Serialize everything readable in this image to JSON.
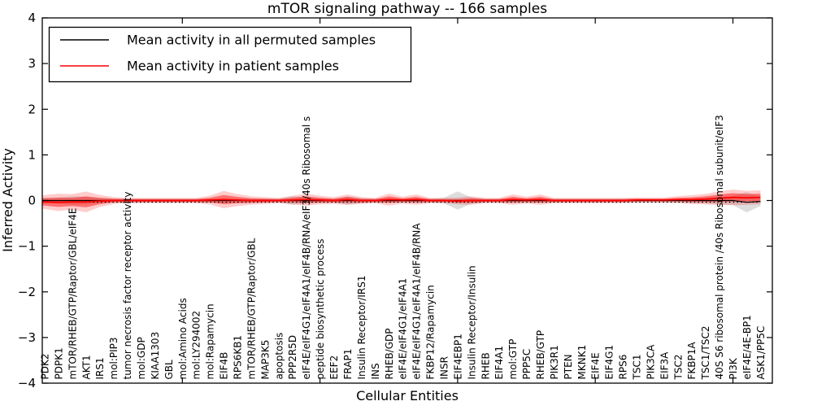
{
  "title": "mTOR signaling pathway -- 166 samples",
  "legend": {
    "items": [
      {
        "label": "Mean activity in all permuted samples",
        "color": "#000000"
      },
      {
        "label": "Mean activity in patient samples",
        "color": "#ff0000"
      }
    ]
  },
  "chart_data": {
    "type": "line",
    "title": "mTOR signaling pathway -- 166 samples",
    "xlabel": "Cellular Entities",
    "ylabel": "Inferred Activity",
    "ylim": [
      -4,
      4
    ],
    "ytick_values": [
      4,
      3,
      2,
      1,
      0,
      -1,
      -2,
      -3,
      -4
    ],
    "ytick_labels": [
      "4",
      "3",
      "2",
      "1",
      "0",
      "−1",
      "−2",
      "−3",
      "−4"
    ],
    "grid": false,
    "legend_position": "upper left",
    "band_colors": {
      "permuted": "#aaaaaa",
      "patient": "#ff0000"
    },
    "categories": [
      "PDK2",
      "PDPK1",
      "mTOR/RHEB/GTP/Raptor/GBL/eIF4E",
      "AKT1",
      "IRS1",
      "mol:PIP3",
      "tumor necrosis factor receptor activity",
      "mol:GDP",
      "KIAA1303",
      "GBL",
      "mol:Amino Acids",
      "mol:LY294002",
      "mol:Rapamycin",
      "EIF4B",
      "RPS6KB1",
      "mTOR/RHEB/GTP/Raptor/GBL",
      "MAP3K5",
      "apoptosis",
      "PPP2R5D",
      "eIF4E/eIF4G1/eIF4A1/eIF4B/RNA/eIF3/40s Ribosomal s",
      "peptide biosynthetic process",
      "EEF2",
      "FRAP1",
      "Insulin Receptor/IRS1",
      "INS",
      "RHEB/GDP",
      "eIF4E/eIF4G1/eIF4A1",
      "eIF4E/eIF4G1/eIF4A1/eIF4B/RNA",
      "FKBP12/Rapamycin",
      "INSR",
      "EIF4EBP1",
      "Insulin Receptor/Insulin",
      "RHEB",
      "EIF4A1",
      "mol:GTP",
      "PPP5C",
      "RHEB/GTP",
      "PIK3R1",
      "PTEN",
      "MKNK1",
      "EIF4E",
      "EIF4G1",
      "RPS6",
      "TSC1",
      "PIK3CA",
      "EIF3A",
      "TSC2",
      "FKBP1A",
      "TSC1/TSC2",
      "40S S6 ribosomal protein /40s Ribosomal subunit/eIF3",
      "PI3K",
      "eIF4E/4E-BP1",
      "ASK1/PP5C"
    ],
    "series": [
      {
        "name": "Mean activity in all permuted samples",
        "color": "#000000",
        "mean": [
          0,
          0,
          0,
          0,
          0,
          0,
          0,
          0,
          0,
          0,
          0,
          0,
          0,
          0,
          0,
          0,
          0,
          0,
          0,
          0,
          0,
          0,
          0,
          0,
          0,
          0,
          0,
          0,
          0,
          0,
          0,
          0,
          0,
          0,
          0,
          0,
          0,
          0,
          0,
          0,
          0,
          0,
          0,
          0,
          0,
          0,
          0,
          0,
          0,
          0,
          0,
          -0.04,
          -0.02
        ],
        "std": [
          0.06,
          0.07,
          0.09,
          0.08,
          0.05,
          0.04,
          0.04,
          0.04,
          0.04,
          0.04,
          0.04,
          0.04,
          0.04,
          0.05,
          0.04,
          0.04,
          0.04,
          0.04,
          0.09,
          0.07,
          0.05,
          0.04,
          0.09,
          0.05,
          0.04,
          0.05,
          0.04,
          0.05,
          0.04,
          0.06,
          0.2,
          0.07,
          0.04,
          0.04,
          0.05,
          0.04,
          0.05,
          0.04,
          0.04,
          0.04,
          0.04,
          0.04,
          0.04,
          0.04,
          0.04,
          0.04,
          0.04,
          0.05,
          0.06,
          0.08,
          0.1,
          0.22,
          0.1
        ]
      },
      {
        "name": "Mean activity in patient samples",
        "color": "#ff0000",
        "mean": [
          -0.03,
          -0.04,
          -0.03,
          -0.03,
          -0.01,
          0,
          0,
          0,
          0,
          0,
          0,
          0,
          0.01,
          0.02,
          0.01,
          0,
          0,
          0,
          0.01,
          0.02,
          0.01,
          0,
          0.02,
          0,
          0,
          0.02,
          0.01,
          0.02,
          0,
          0,
          -0.01,
          0,
          0,
          0,
          0.02,
          0.01,
          0.02,
          0,
          0,
          0,
          0,
          0,
          0,
          0.01,
          0.01,
          0.01,
          0.02,
          0.02,
          0.03,
          0.05,
          0.07,
          0.06,
          0.07
        ],
        "std": [
          0.08,
          0.1,
          0.09,
          0.12,
          0.07,
          0.04,
          0.03,
          0.03,
          0.03,
          0.03,
          0.03,
          0.03,
          0.05,
          0.1,
          0.07,
          0.05,
          0.04,
          0.03,
          0.05,
          0.07,
          0.05,
          0.04,
          0.06,
          0.04,
          0.03,
          0.07,
          0.04,
          0.06,
          0.03,
          0.03,
          0.04,
          0.05,
          0.03,
          0.03,
          0.06,
          0.04,
          0.06,
          0.03,
          0.03,
          0.03,
          0.03,
          0.03,
          0.03,
          0.03,
          0.03,
          0.03,
          0.04,
          0.05,
          0.06,
          0.08,
          0.09,
          0.08,
          0.08
        ]
      }
    ],
    "baseline_dotted_y": -0.035
  }
}
